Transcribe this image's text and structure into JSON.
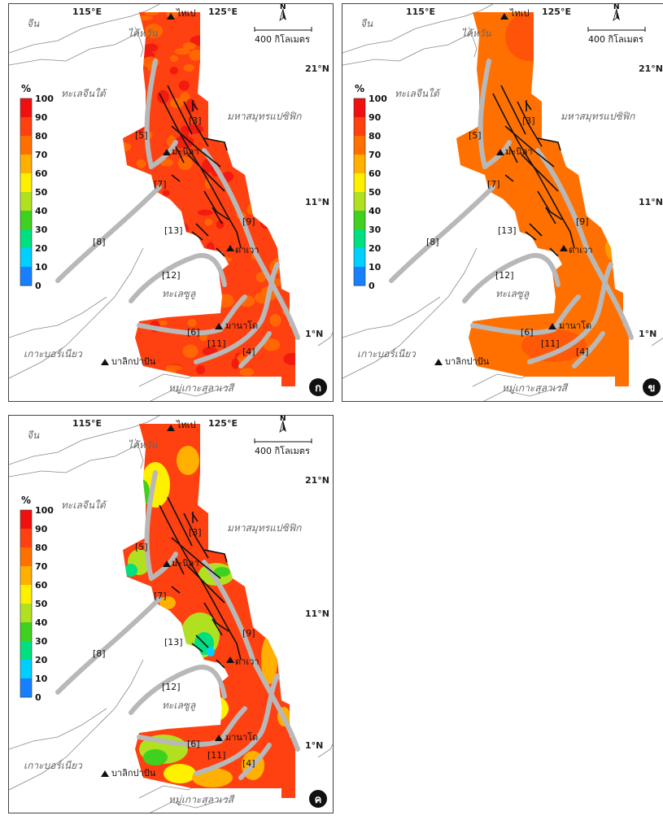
{
  "colors": {
    "scale": [
      "#0018d8",
      "#1880ff",
      "#00d0ff",
      "#00e080",
      "#40d020",
      "#b0e020",
      "#fff000",
      "#ffb000",
      "#ff7000",
      "#ff4010",
      "#f01010"
    ],
    "fault_lines": "#111111",
    "trench_lines": "#b8b8b8",
    "coastline": "#888888"
  },
  "legend": {
    "title": "%",
    "ticks": [
      "100",
      "90",
      "80",
      "70",
      "60",
      "50",
      "40",
      "30",
      "20",
      "10",
      "0"
    ]
  },
  "labels": {
    "lon_115": "115°E",
    "lon_125": "125°E",
    "lat_21": "21°N",
    "lat_11": "11°N",
    "lat_1": "1°N",
    "north": "N",
    "scale_bar": "400 กิโลเมตร",
    "china": "จีน",
    "taiwan": "ไต้หวัน",
    "south_china_sea": "ทะเลจีนใต้",
    "pacific": "มหาสมุทรแปซิฟิก",
    "sulu_sea": "ทะเลซูลู",
    "borneo": "เกาะบอร์เนียว",
    "sulawesi": "หมู่เกาะสุลาเวสี",
    "taipei": "ไทเป",
    "manila": "มะนิลา",
    "davao": "ดาเวา",
    "manado": "มานาโด",
    "balikpapan": "บาลิกปาปัน",
    "faults": [
      "[3]",
      "[4]",
      "[5]",
      "[6]",
      "[7]",
      "[8]",
      "[9]",
      "[11]",
      "[12]",
      "[13]"
    ]
  },
  "panels": [
    {
      "id": "a",
      "badge": "ก",
      "map_layer": "ค่าสูงสม่ำเสมอ (90-100%)"
    },
    {
      "id": "b",
      "badge": "ข",
      "map_layer": "ค่าสูงทั้งพื้นที่ (~90%)"
    },
    {
      "id": "c",
      "badge": "ค",
      "map_layer": "ค่าผันแปรตามพื้นที่ (0-100%)"
    }
  ]
}
